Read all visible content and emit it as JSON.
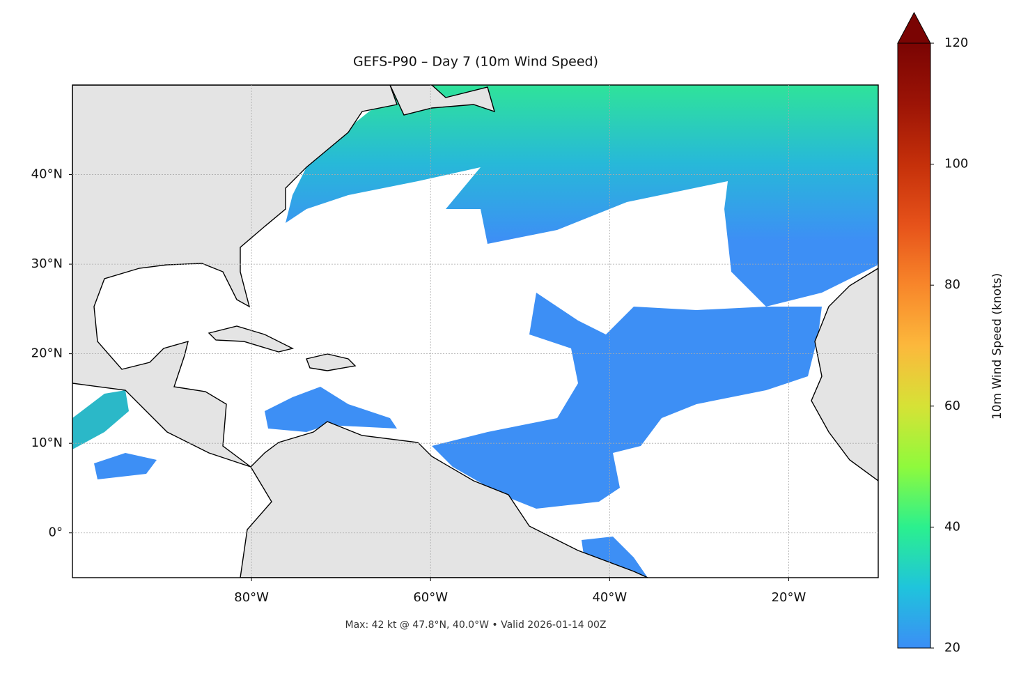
{
  "chart_data": {
    "type": "map",
    "title": "GEFS-P90 – Day 7 (10m Wind Speed)",
    "note": "Max: 42 kt @ 47.8°N, 40.0°W • Valid 2026-01-14 00Z",
    "xlim": [
      -100,
      -10
    ],
    "ylim": [
      -5,
      50
    ],
    "xticks": [
      {
        "value": -80,
        "label": "80°W"
      },
      {
        "value": -60,
        "label": "60°W"
      },
      {
        "value": -40,
        "label": "40°W"
      },
      {
        "value": -20,
        "label": "20°W"
      }
    ],
    "yticks": [
      {
        "value": 0,
        "label": "0°"
      },
      {
        "value": 10,
        "label": "10°N"
      },
      {
        "value": 20,
        "label": "20°N"
      },
      {
        "value": 30,
        "label": "30°N"
      },
      {
        "value": 40,
        "label": "40°N"
      }
    ],
    "grid": true,
    "colorbar": {
      "label": "10m Wind Speed (knots)",
      "lim": [
        20,
        120
      ],
      "ticks": [
        20,
        40,
        60,
        80,
        100,
        120
      ],
      "extend": "max",
      "colormap": [
        "#3b8ef6",
        "#1fc4dc",
        "#2bf08e",
        "#8ffa3c",
        "#d6e236",
        "#fcb83c",
        "#f8862a",
        "#e6521a",
        "#c5300a",
        "#9c1406",
        "#7a0403"
      ]
    }
  }
}
